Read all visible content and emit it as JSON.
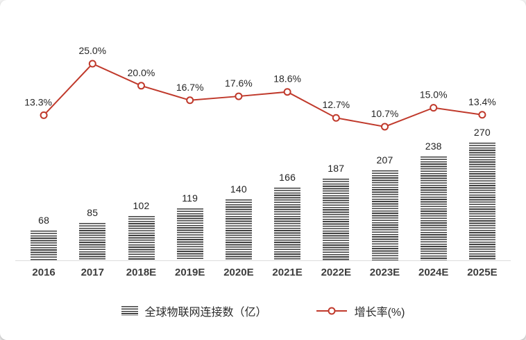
{
  "chart_data": {
    "type": "bar",
    "subtype": "bar+line combo",
    "categories": [
      "2016",
      "2017",
      "2018E",
      "2019E",
      "2020E",
      "2021E",
      "2022E",
      "2023E",
      "2024E",
      "2025E"
    ],
    "series": [
      {
        "name": "全球物联网连接数（亿）",
        "type": "bar",
        "values": [
          68,
          85,
          102,
          119,
          140,
          166,
          187,
          207,
          238,
          270
        ],
        "value_labels": [
          "68",
          "85",
          "102",
          "119",
          "140",
          "166",
          "187",
          "207",
          "238",
          "270"
        ]
      },
      {
        "name": "增长率(%)",
        "type": "line",
        "values": [
          13.3,
          25.0,
          20.0,
          16.7,
          17.6,
          18.6,
          12.7,
          10.7,
          15.0,
          13.4
        ],
        "value_labels": [
          "13.3%",
          "25.0%",
          "20.0%",
          "16.7%",
          "17.6%",
          "18.6%",
          "12.7%",
          "10.7%",
          "15.0%",
          "13.4%"
        ]
      }
    ],
    "title": "",
    "xlabel": "",
    "ylabel": "",
    "grid": false,
    "legend_position": "bottom"
  },
  "legend": {
    "bar_label": "全球物联网连接数（亿）",
    "line_label": "增长率(%)"
  },
  "colors": {
    "line": "#c0392b",
    "bar_stripe": "#3f3f3f",
    "value_text": "#1f1f1f",
    "axis_text": "#3d3d3d"
  }
}
